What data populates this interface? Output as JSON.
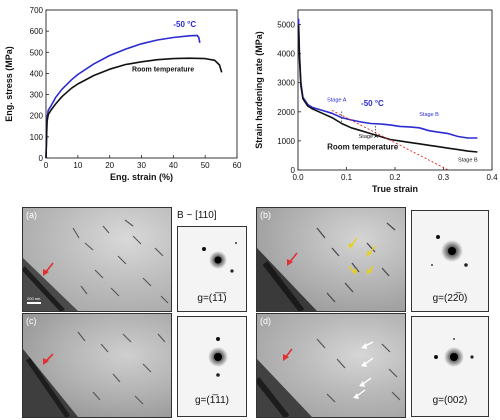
{
  "chart_data": [
    {
      "type": "line",
      "xlabel": "Eng. strain (%)",
      "ylabel": "Eng. stress (MPa)",
      "xlim": [
        0,
        60
      ],
      "ylim": [
        0,
        700
      ],
      "xticks": [
        "0",
        "10",
        "20",
        "30",
        "40",
        "50",
        "60"
      ],
      "yticks": [
        "0",
        "100",
        "200",
        "300",
        "400",
        "500",
        "600",
        "700"
      ],
      "series": [
        {
          "name": "-50 °C",
          "color": "#2b2bd1",
          "x": [
            0,
            0.3,
            0.7,
            1.5,
            3,
            5,
            8,
            10,
            15,
            20,
            25,
            30,
            35,
            40,
            45,
            47.5,
            48,
            48.3
          ],
          "y": [
            0,
            180,
            225,
            245,
            285,
            325,
            370,
            395,
            445,
            485,
            515,
            540,
            558,
            570,
            578,
            580,
            570,
            545
          ]
        },
        {
          "name": "Room temperature",
          "color": "#111111",
          "x": [
            0,
            0.3,
            0.7,
            1.5,
            3,
            5,
            8,
            10,
            15,
            20,
            25,
            30,
            35,
            40,
            45,
            50,
            53,
            54.5,
            55.2
          ],
          "y": [
            0,
            170,
            205,
            225,
            255,
            290,
            330,
            350,
            390,
            420,
            442,
            455,
            465,
            470,
            472,
            470,
            462,
            440,
            405
          ]
        }
      ]
    },
    {
      "type": "line",
      "xlabel": "True strain",
      "ylabel": "Strain hardening rate (MPa)",
      "xlim": [
        0,
        0.4
      ],
      "ylim": [
        0,
        5500
      ],
      "xticks": [
        "0.0",
        "0.1",
        "0.2",
        "0.3",
        "0.4"
      ],
      "yticks": [
        "0",
        "1000",
        "2000",
        "3000",
        "4000",
        "5000"
      ],
      "series": [
        {
          "name": "-50 °C",
          "color": "#2b2bd1",
          "x": [
            0.001,
            0.003,
            0.006,
            0.01,
            0.02,
            0.03,
            0.05,
            0.07,
            0.09,
            0.11,
            0.13,
            0.15,
            0.17,
            0.19,
            0.21,
            0.23,
            0.25,
            0.27,
            0.29,
            0.31,
            0.33,
            0.35,
            0.37
          ],
          "y": [
            5200,
            4000,
            3000,
            2500,
            2250,
            2150,
            2050,
            1950,
            1800,
            1720,
            1650,
            1600,
            1580,
            1550,
            1500,
            1480,
            1450,
            1350,
            1300,
            1250,
            1150,
            1100,
            1100
          ]
        },
        {
          "name": "Room temperature",
          "color": "#111111",
          "x": [
            0.001,
            0.003,
            0.006,
            0.01,
            0.02,
            0.03,
            0.05,
            0.07,
            0.09,
            0.11,
            0.13,
            0.15,
            0.17,
            0.19,
            0.21,
            0.23,
            0.25,
            0.27,
            0.29,
            0.31,
            0.33,
            0.35,
            0.37
          ],
          "y": [
            5000,
            3800,
            2900,
            2450,
            2200,
            2100,
            1950,
            1800,
            1600,
            1450,
            1350,
            1250,
            1150,
            1050,
            1000,
            950,
            900,
            850,
            800,
            750,
            700,
            650,
            620
          ]
        }
      ],
      "annotations": [
        "Stage A",
        "Stage B",
        "Stage A",
        "Stage B"
      ]
    }
  ],
  "figure": {
    "left_legend_cold": "-50 °C",
    "left_legend_rt": "Room temperature",
    "right_legend_cold": "-50 °C",
    "right_legend_rt": "Room temperature",
    "right_stage_a_top": "Stage A",
    "right_stage_b_top": "Stage B",
    "right_stage_a_bottom": "Stage A",
    "right_stage_b_bottom": "Stage B"
  },
  "tem": {
    "beam_direction": "B ~ [110]",
    "scale_bar": "200 nm",
    "panels": [
      {
        "label": "(a)",
        "g": "g=(1̅1̅)"
      },
      {
        "label": "(b)",
        "g": "g=(22̅0)"
      },
      {
        "label": "(c)",
        "g": "g=(1̅11)"
      },
      {
        "label": "(d)",
        "g": "g=(002)"
      }
    ]
  }
}
